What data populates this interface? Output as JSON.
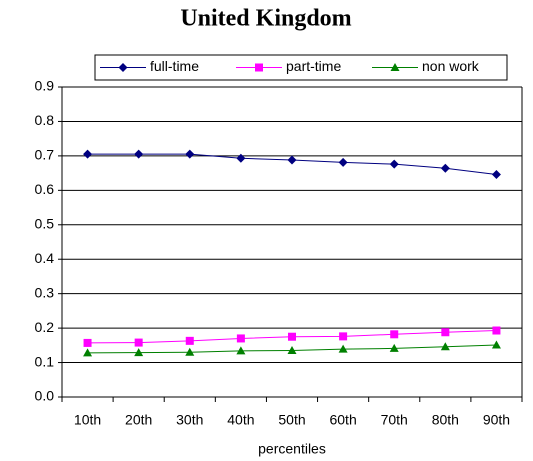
{
  "chart_data": {
    "type": "line",
    "title": "United Kingdom",
    "x_label": "percentiles",
    "categories": [
      "10th",
      "20th",
      "30th",
      "40th",
      "50th",
      "60th",
      "70th",
      "80th",
      "90th"
    ],
    "series": [
      {
        "name": "full-time",
        "color": "#000080",
        "marker": "diamond",
        "values": [
          0.705,
          0.705,
          0.705,
          0.693,
          0.688,
          0.681,
          0.676,
          0.664,
          0.646
        ]
      },
      {
        "name": "part-time",
        "color": "#ff00ff",
        "marker": "square",
        "values": [
          0.157,
          0.158,
          0.163,
          0.17,
          0.175,
          0.176,
          0.182,
          0.188,
          0.193
        ]
      },
      {
        "name": "non work",
        "color": "#008000",
        "marker": "triangle",
        "values": [
          0.128,
          0.129,
          0.13,
          0.134,
          0.135,
          0.139,
          0.141,
          0.146,
          0.151
        ]
      }
    ],
    "ylim": [
      0,
      0.9
    ],
    "yticks": [
      {
        "value": 0,
        "label": "0.0"
      },
      0.1,
      0.2,
      0.3,
      0.4,
      0.5,
      0.6,
      0.7,
      0.8,
      0.9
    ],
    "grid": true,
    "legend": "top"
  }
}
